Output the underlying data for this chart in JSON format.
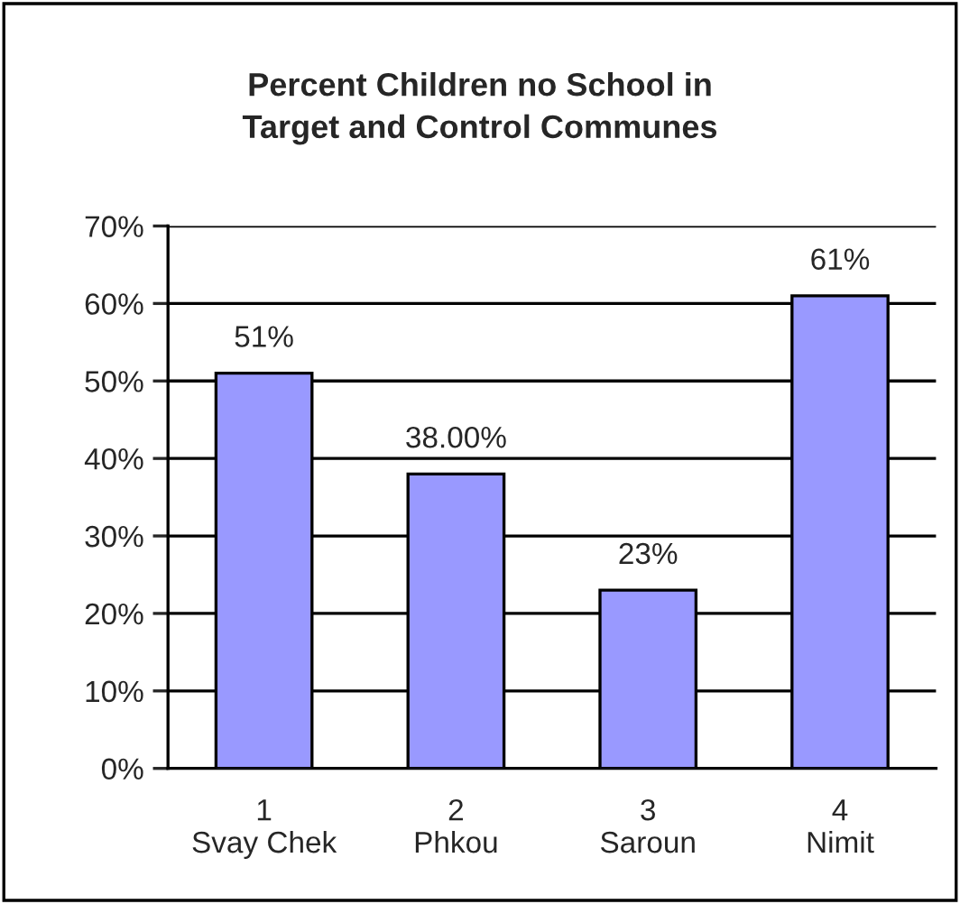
{
  "chart_data": {
    "type": "bar",
    "title": "Percent Children no School in Target and Control Communes",
    "categories": [
      "1\nSvay Chek",
      "2\nPhkou",
      "3\nSaroun",
      "4\nNimit"
    ],
    "values": [
      51,
      38,
      23,
      61
    ],
    "value_labels": [
      "51%",
      "38.00%",
      "23%",
      "61%"
    ],
    "color": "#9999ff",
    "ylim": [
      0,
      70
    ],
    "yticks": [
      {
        "value": 0,
        "label": "0%"
      },
      {
        "value": 10,
        "label": "10%"
      },
      {
        "value": 20,
        "label": "20%"
      },
      {
        "value": 30,
        "label": "30%"
      },
      {
        "value": 40,
        "label": "40%"
      },
      {
        "value": 50,
        "label": "50%"
      },
      {
        "value": 60,
        "label": "60%"
      },
      {
        "value": 70,
        "label": "70%"
      }
    ],
    "grid": "y",
    "legend": false
  }
}
